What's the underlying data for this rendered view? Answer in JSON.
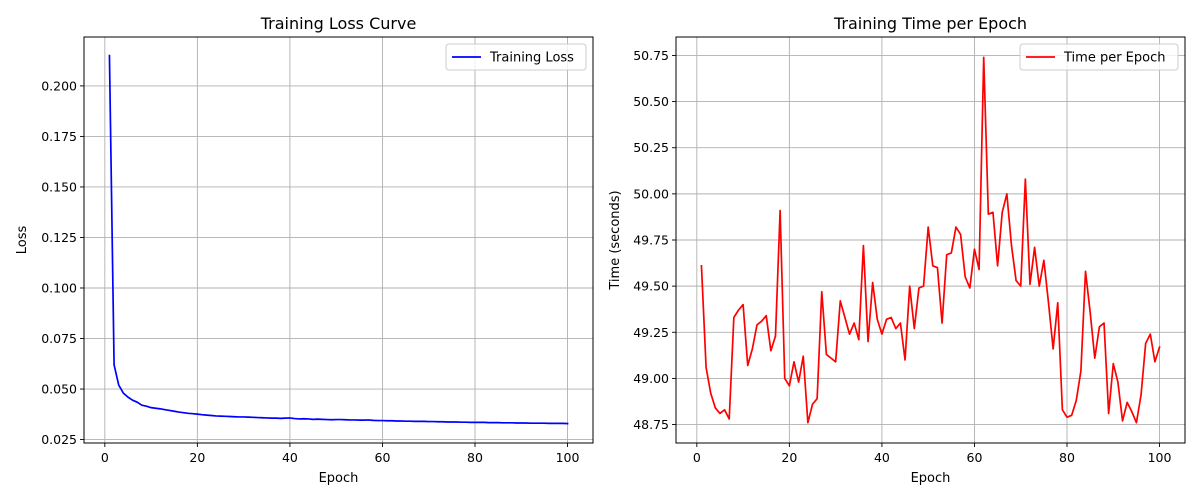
{
  "chart_data": [
    {
      "type": "line",
      "title": "Training Loss Curve",
      "xlabel": "Epoch",
      "ylabel": "Loss",
      "xlim": [
        -4.5,
        105.5
      ],
      "ylim": [
        0.0233,
        0.2242
      ],
      "xticks": [
        0,
        20,
        40,
        60,
        80,
        100
      ],
      "yticks": [
        0.025,
        0.05,
        0.075,
        0.1,
        0.125,
        0.15,
        0.175,
        0.2
      ],
      "ytick_labels": [
        "0.025",
        "0.050",
        "0.075",
        "0.100",
        "0.125",
        "0.150",
        "0.175",
        "0.200"
      ],
      "grid": true,
      "legend_position": "upper-right",
      "series": [
        {
          "name": "Training Loss",
          "color": "#0000ff",
          "x": [
            1,
            2,
            3,
            4,
            5,
            6,
            7,
            8,
            9,
            10,
            11,
            12,
            13,
            14,
            15,
            16,
            17,
            18,
            19,
            20,
            21,
            22,
            23,
            24,
            25,
            26,
            27,
            28,
            29,
            30,
            31,
            32,
            33,
            34,
            35,
            36,
            37,
            38,
            39,
            40,
            41,
            42,
            43,
            44,
            45,
            46,
            47,
            48,
            49,
            50,
            51,
            52,
            53,
            54,
            55,
            56,
            57,
            58,
            59,
            60,
            61,
            62,
            63,
            64,
            65,
            66,
            67,
            68,
            69,
            70,
            71,
            72,
            73,
            74,
            75,
            76,
            77,
            78,
            79,
            80,
            81,
            82,
            83,
            84,
            85,
            86,
            87,
            88,
            89,
            90,
            91,
            92,
            93,
            94,
            95,
            96,
            97,
            98,
            99,
            100
          ],
          "values": [
            0.215,
            0.062,
            0.052,
            0.048,
            0.046,
            0.0445,
            0.0435,
            0.042,
            0.0415,
            0.0408,
            0.0405,
            0.0402,
            0.0398,
            0.0394,
            0.039,
            0.0386,
            0.0383,
            0.038,
            0.0378,
            0.0376,
            0.0373,
            0.0371,
            0.0369,
            0.0367,
            0.0366,
            0.0365,
            0.0364,
            0.0363,
            0.0362,
            0.0362,
            0.0361,
            0.036,
            0.0359,
            0.0358,
            0.0357,
            0.0356,
            0.0356,
            0.0355,
            0.0356,
            0.0357,
            0.0354,
            0.0352,
            0.0353,
            0.0352,
            0.035,
            0.0351,
            0.035,
            0.0349,
            0.0348,
            0.0349,
            0.0349,
            0.0348,
            0.0347,
            0.0347,
            0.0346,
            0.0346,
            0.0347,
            0.0345,
            0.0344,
            0.0344,
            0.0343,
            0.0343,
            0.0342,
            0.0342,
            0.0341,
            0.0341,
            0.034,
            0.034,
            0.034,
            0.0339,
            0.0339,
            0.0338,
            0.0338,
            0.0337,
            0.0337,
            0.0337,
            0.0336,
            0.0336,
            0.0335,
            0.0335,
            0.0335,
            0.0335,
            0.0334,
            0.0334,
            0.0334,
            0.0333,
            0.0333,
            0.0333,
            0.0332,
            0.0332,
            0.0332,
            0.0331,
            0.0331,
            0.0331,
            0.0331,
            0.033,
            0.033,
            0.033,
            0.033,
            0.0329
          ]
        }
      ]
    },
    {
      "type": "line",
      "title": "Training Time per Epoch",
      "xlabel": "Epoch",
      "ylabel": "Time (seconds)",
      "xlim": [
        -4.5,
        105.5
      ],
      "ylim": [
        48.65,
        50.85
      ],
      "xticks": [
        0,
        20,
        40,
        60,
        80,
        100
      ],
      "yticks": [
        48.75,
        49.0,
        49.25,
        49.5,
        49.75,
        50.0,
        50.25,
        50.5,
        50.75
      ],
      "ytick_labels": [
        "48.75",
        "49.00",
        "49.25",
        "49.50",
        "49.75",
        "50.00",
        "50.25",
        "50.50",
        "50.75"
      ],
      "grid": true,
      "legend_position": "upper-right",
      "series": [
        {
          "name": "Time per Epoch",
          "color": "#ff0000",
          "x": [
            1,
            2,
            3,
            4,
            5,
            6,
            7,
            8,
            9,
            10,
            11,
            12,
            13,
            14,
            15,
            16,
            17,
            18,
            19,
            20,
            21,
            22,
            23,
            24,
            25,
            26,
            27,
            28,
            29,
            30,
            31,
            32,
            33,
            34,
            35,
            36,
            37,
            38,
            39,
            40,
            41,
            42,
            43,
            44,
            45,
            46,
            47,
            48,
            49,
            50,
            51,
            52,
            53,
            54,
            55,
            56,
            57,
            58,
            59,
            60,
            61,
            62,
            63,
            64,
            65,
            66,
            67,
            68,
            69,
            70,
            71,
            72,
            73,
            74,
            75,
            76,
            77,
            78,
            79,
            80,
            81,
            82,
            83,
            84,
            85,
            86,
            87,
            88,
            89,
            90,
            91,
            92,
            93,
            94,
            95,
            96,
            97,
            98,
            99,
            100
          ],
          "values": [
            49.61,
            49.06,
            48.92,
            48.84,
            48.81,
            48.83,
            48.78,
            49.33,
            49.37,
            49.4,
            49.07,
            49.16,
            49.29,
            49.31,
            49.34,
            49.15,
            49.23,
            49.91,
            49.0,
            48.96,
            49.09,
            48.98,
            49.12,
            48.76,
            48.86,
            48.89,
            49.47,
            49.13,
            49.11,
            49.09,
            49.42,
            49.33,
            49.24,
            49.3,
            49.21,
            49.72,
            49.2,
            49.52,
            49.32,
            49.24,
            49.32,
            49.33,
            49.27,
            49.3,
            49.1,
            49.5,
            49.27,
            49.49,
            49.5,
            49.82,
            49.61,
            49.6,
            49.3,
            49.67,
            49.68,
            49.82,
            49.78,
            49.55,
            49.49,
            49.7,
            49.59,
            50.74,
            49.89,
            49.9,
            49.61,
            49.9,
            50.0,
            49.72,
            49.53,
            49.5,
            50.08,
            49.51,
            49.71,
            49.5,
            49.64,
            49.41,
            49.16,
            49.41,
            48.83,
            48.79,
            48.8,
            48.88,
            49.04,
            49.58,
            49.36,
            49.11,
            49.28,
            49.3,
            48.81,
            49.08,
            48.98,
            48.77,
            48.87,
            48.82,
            48.76,
            48.91,
            49.19,
            49.24,
            49.09,
            49.17
          ]
        }
      ]
    }
  ]
}
